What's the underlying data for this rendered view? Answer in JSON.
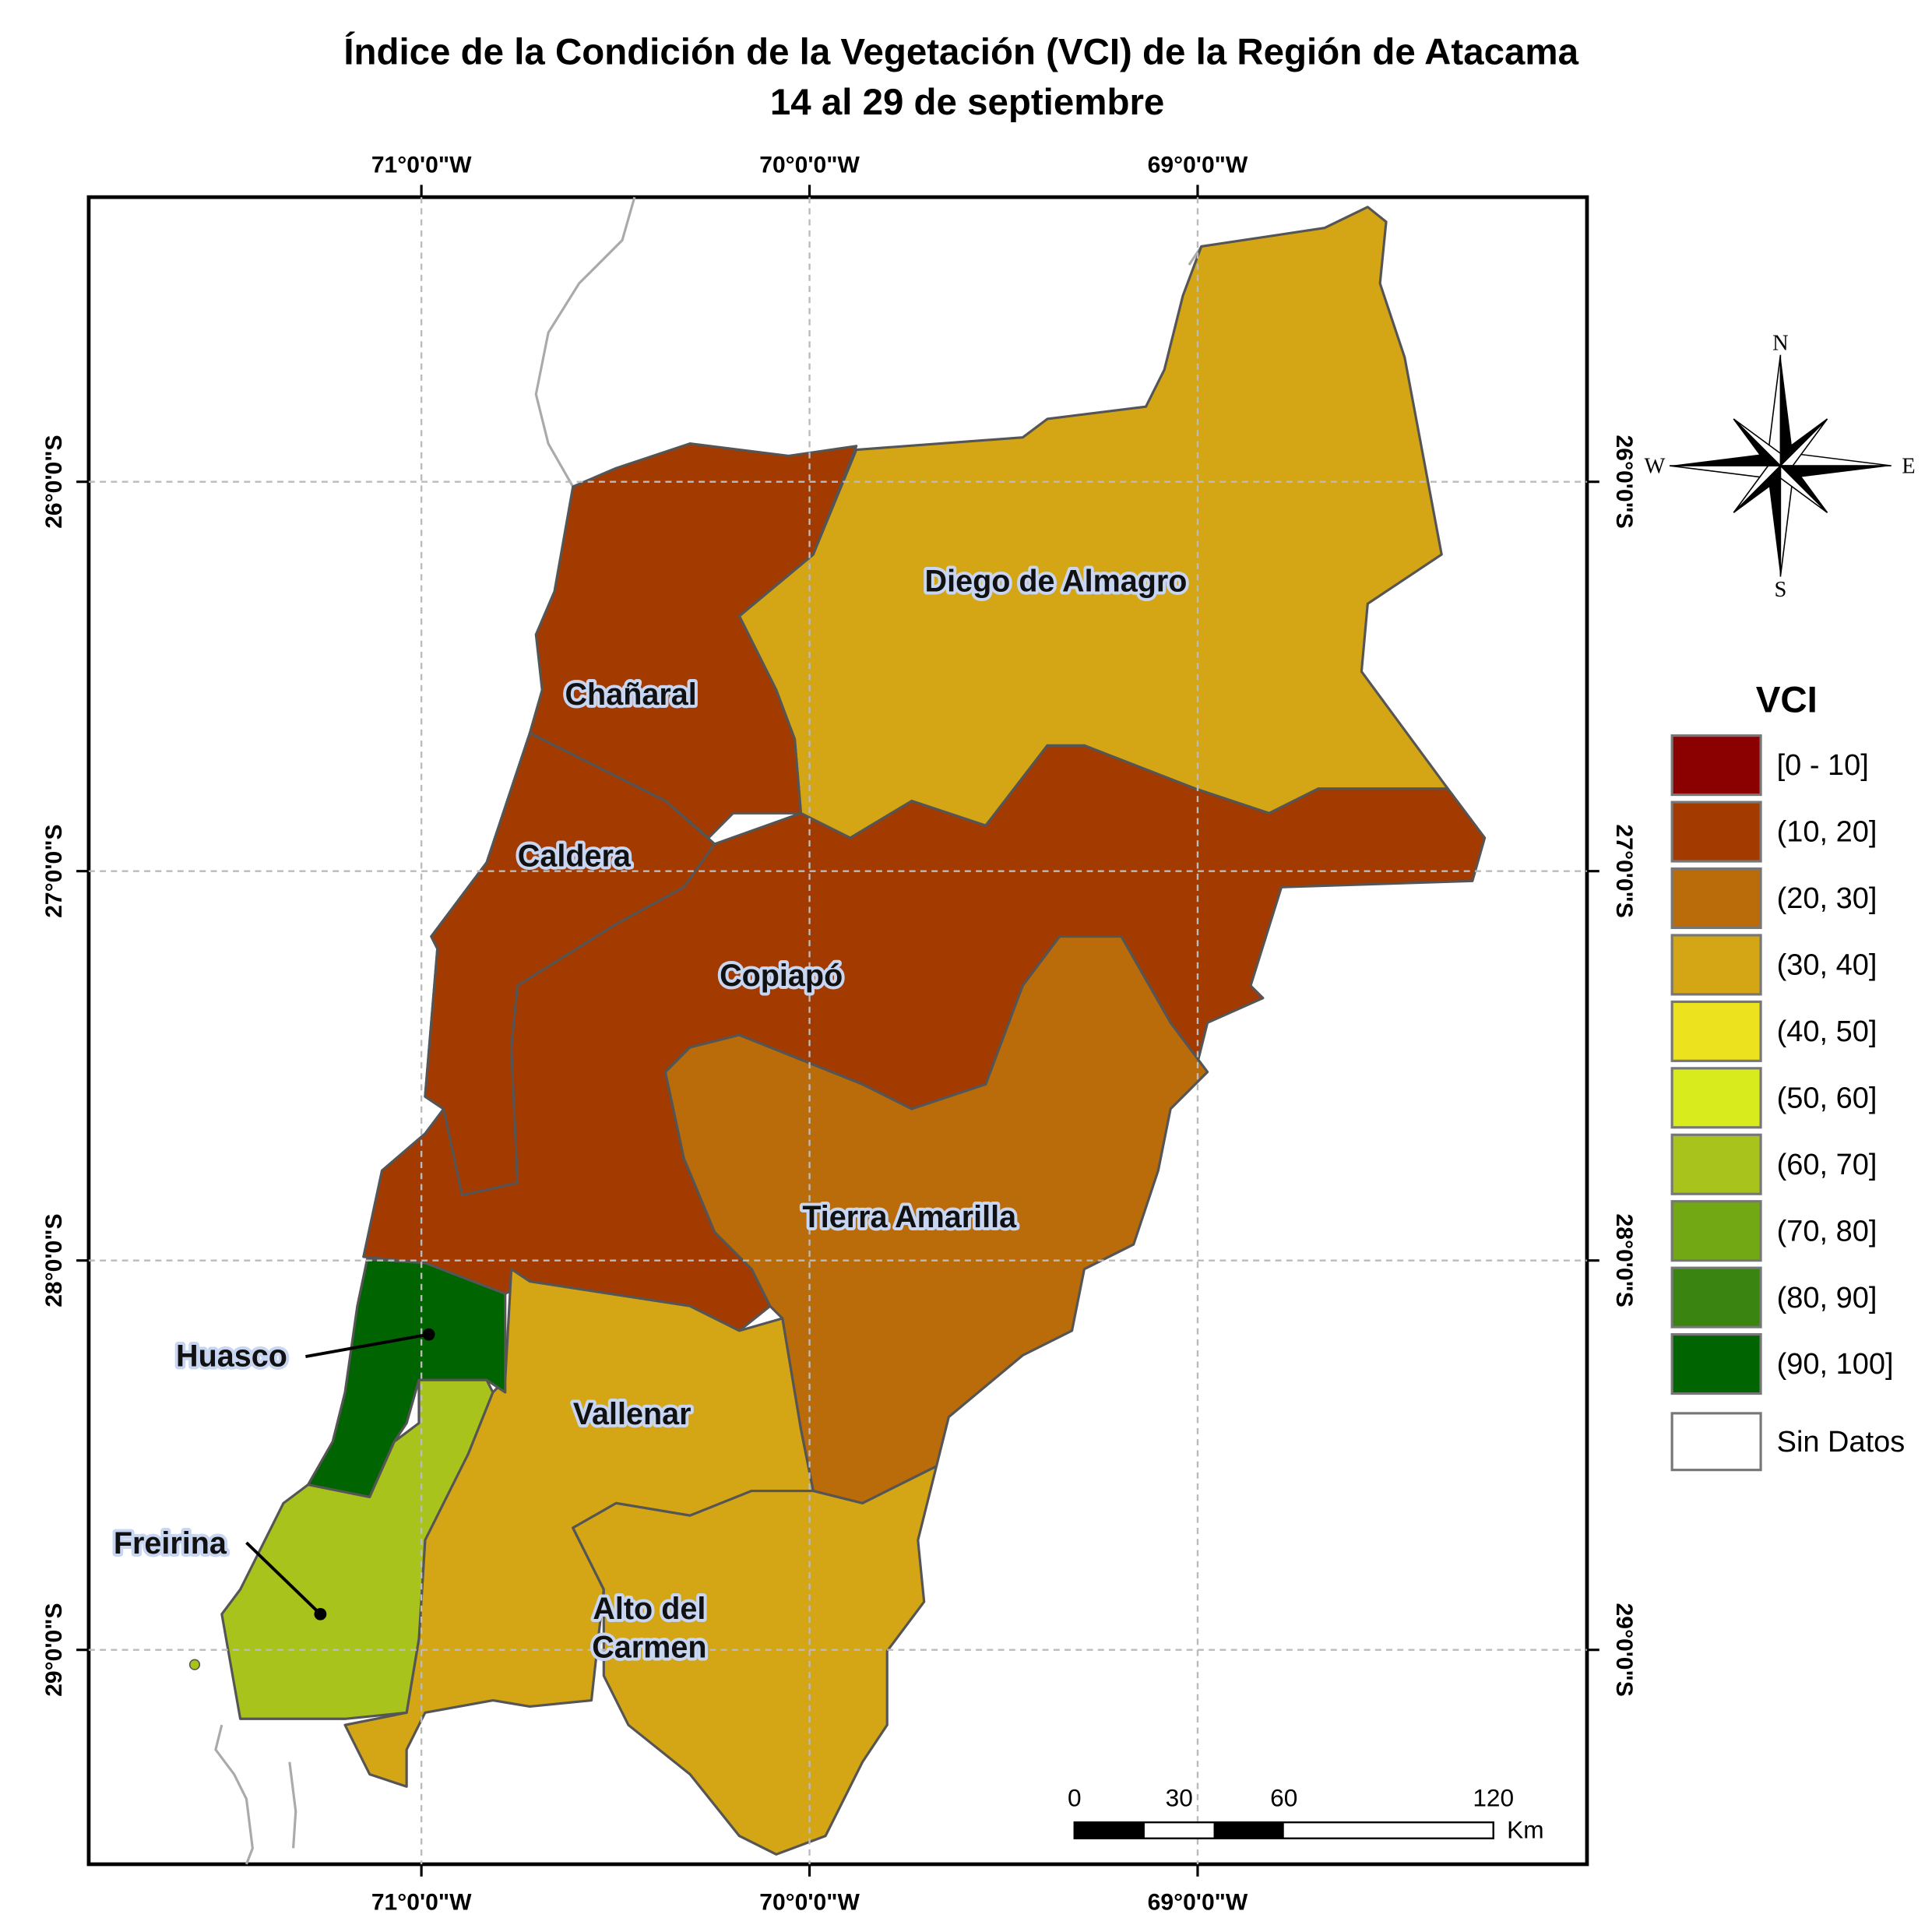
{
  "title": "Índice de la Condición de la Vegetación (VCI) de la Región de Atacama",
  "subtitle": "14 al 29 de septiembre",
  "longitude_labels": [
    "71°0'0\"W",
    "70°0'0\"W",
    "69°0'0\"W"
  ],
  "latitude_labels": [
    "26°0'0\"S",
    "27°0'0\"S",
    "28°0'0\"S",
    "29°0'0\"S"
  ],
  "regions": [
    {
      "name": "Copiapó",
      "color": "#a33a00"
    },
    {
      "name": "Diego de Almagro",
      "color": "#d4a514"
    },
    {
      "name": "Chañaral",
      "color": "#a33a00"
    },
    {
      "name": "Caldera",
      "color": "#a33a00"
    },
    {
      "name": "Tierra Amarilla",
      "color": "#b96c09"
    },
    {
      "name": "Vallenar",
      "color": "#d4a514"
    },
    {
      "name": "Alto del Carmen",
      "color": "#d4a514"
    },
    {
      "name": "Huasco",
      "color": "#006400"
    },
    {
      "name": "Freirina",
      "color": "#a8c41c"
    }
  ],
  "legend": {
    "title": "VCI",
    "items": [
      {
        "label": "[0 - 10]",
        "color": "#8b0000"
      },
      {
        "label": "(10, 20]",
        "color": "#a33a00"
      },
      {
        "label": "(20, 30]",
        "color": "#b96c09"
      },
      {
        "label": "(30, 40]",
        "color": "#d4a514"
      },
      {
        "label": "(40, 50]",
        "color": "#ece31e"
      },
      {
        "label": "(50, 60]",
        "color": "#d8eb1c"
      },
      {
        "label": "(60, 70]",
        "color": "#a8c41c"
      },
      {
        "label": "(70, 80]",
        "color": "#73a815"
      },
      {
        "label": "(80, 90]",
        "color": "#3a8512"
      },
      {
        "label": "(90, 100]",
        "color": "#006400"
      }
    ],
    "no_data": "Sin Datos"
  },
  "scale_bar": {
    "labels": [
      "0",
      "30",
      "60",
      "120"
    ],
    "unit": "Km"
  },
  "compass": {
    "north": "N",
    "east": "E",
    "south": "S",
    "west": "W"
  }
}
